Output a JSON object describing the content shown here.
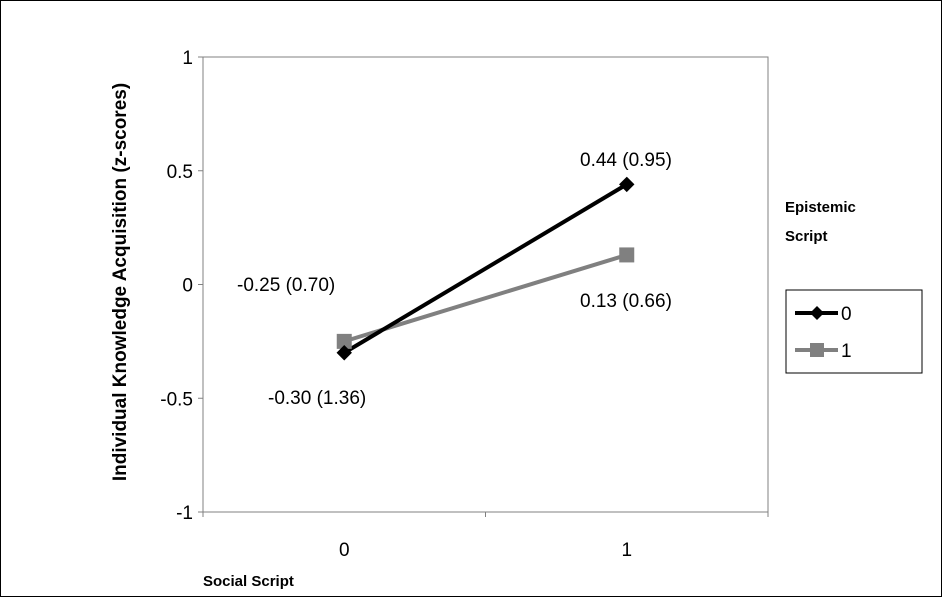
{
  "chart_data": {
    "type": "line",
    "categories": [
      "0",
      "1"
    ],
    "x": [
      0,
      1
    ],
    "ylim": [
      -1,
      1
    ],
    "yticks": [
      "1",
      "0.5",
      "0",
      "-0.5",
      "-1"
    ],
    "ytick_values": [
      1,
      0.5,
      0,
      -0.5,
      -1
    ],
    "ylabel": "Individual Knowledge Acquisition (z-scores)",
    "xlabel": "Social Script",
    "legend_title_line1": "Epistemic",
    "legend_title_line2": "Script",
    "legend_placement": "right",
    "grid": false,
    "series": [
      {
        "name": "0",
        "values": [
          -0.3,
          0.44
        ],
        "color": "#000000",
        "marker": "diamond",
        "labels": [
          "-0.30 (1.36)",
          "0.44 (0.95)"
        ]
      },
      {
        "name": "1",
        "values": [
          -0.25,
          0.13
        ],
        "color": "#808080",
        "marker": "square",
        "labels": [
          "-0.25 (0.70)",
          "0.13 (0.66)"
        ]
      }
    ]
  }
}
